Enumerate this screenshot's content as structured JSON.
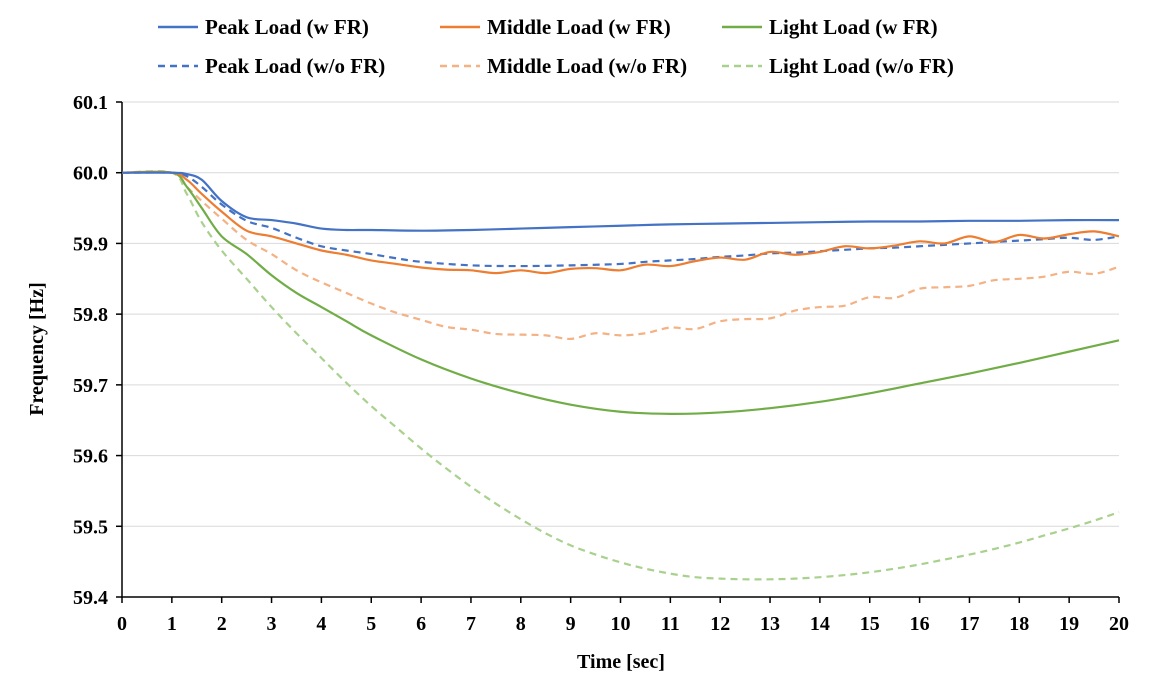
{
  "chart_data": {
    "type": "line",
    "xlabel": "Time  [sec]",
    "ylabel": "Frequency  [Hz]",
    "xlim": [
      0,
      20
    ],
    "ylim": [
      59.4,
      60.1
    ],
    "x_ticks": [
      "0",
      "1",
      "2",
      "3",
      "4",
      "5",
      "6",
      "7",
      "8",
      "9",
      "10",
      "11",
      "12",
      "13",
      "14",
      "15",
      "16",
      "17",
      "18",
      "19",
      "20"
    ],
    "y_ticks": [
      "59.4",
      "59.5",
      "59.6",
      "59.7",
      "59.8",
      "59.9",
      "60.0",
      "60.1"
    ],
    "grid": "horizontal",
    "legend_position": "top",
    "series": [
      {
        "name": "Peak Load (w FR)",
        "color": "#4472C4",
        "dash": "solid",
        "x": [
          0,
          1,
          1.3,
          1.6,
          2,
          2.5,
          3,
          3.5,
          4,
          4.5,
          5,
          6,
          7,
          8,
          9,
          10,
          11,
          12,
          13,
          14,
          15,
          16,
          17,
          18,
          19,
          20
        ],
        "y": [
          60.0,
          60.0,
          59.998,
          59.99,
          59.96,
          59.937,
          59.933,
          59.928,
          59.921,
          59.919,
          59.919,
          59.918,
          59.919,
          59.921,
          59.923,
          59.925,
          59.927,
          59.928,
          59.929,
          59.93,
          59.931,
          59.931,
          59.932,
          59.932,
          59.933,
          59.933
        ]
      },
      {
        "name": "Middle Load (w FR)",
        "color": "#ED7D31",
        "dash": "solid",
        "x": [
          0,
          1,
          1.3,
          1.6,
          2,
          2.5,
          3,
          3.5,
          4,
          4.5,
          5,
          5.5,
          6,
          6.5,
          7,
          7.5,
          8,
          8.5,
          9,
          9.5,
          10,
          10.5,
          11,
          11.5,
          12,
          12.5,
          13,
          13.5,
          14,
          14.5,
          15,
          15.5,
          16,
          16.5,
          17,
          17.5,
          18,
          18.5,
          19,
          19.5,
          20
        ],
        "y": [
          60.0,
          60.0,
          59.99,
          59.97,
          59.945,
          59.918,
          59.91,
          59.9,
          59.89,
          59.884,
          59.876,
          59.871,
          59.866,
          59.863,
          59.862,
          59.858,
          59.862,
          59.858,
          59.864,
          59.865,
          59.862,
          59.87,
          59.868,
          59.875,
          59.88,
          59.877,
          59.888,
          59.884,
          59.888,
          59.896,
          59.893,
          59.897,
          59.903,
          59.9,
          59.91,
          59.902,
          59.912,
          59.907,
          59.913,
          59.917,
          59.91
        ]
      },
      {
        "name": "Light Load (w FR)",
        "color": "#70AD47",
        "dash": "solid",
        "x": [
          0,
          1,
          1.3,
          1.6,
          2,
          2.5,
          3,
          3.5,
          4,
          4.5,
          5,
          6,
          7,
          8,
          9,
          10,
          11,
          12,
          13,
          14,
          15,
          16,
          17,
          18,
          19,
          20
        ],
        "y": [
          60.0,
          60.0,
          59.98,
          59.95,
          59.91,
          59.885,
          59.855,
          59.83,
          59.81,
          59.79,
          59.77,
          59.736,
          59.709,
          59.688,
          59.672,
          59.662,
          59.659,
          59.661,
          59.667,
          59.676,
          59.688,
          59.702,
          59.716,
          59.731,
          59.747,
          59.763
        ]
      },
      {
        "name": "Peak Load (w/o FR)",
        "color": "#4472C4",
        "dash": "dashed",
        "x": [
          0,
          1,
          1.3,
          1.6,
          2,
          2.5,
          3,
          3.5,
          4,
          4.5,
          5,
          5.5,
          6,
          7,
          8,
          9,
          10,
          10.5,
          11,
          11.5,
          12,
          12.5,
          13,
          13.5,
          14,
          14.5,
          15,
          15.5,
          16,
          16.5,
          17,
          17.5,
          18,
          18.5,
          19,
          19.5,
          20
        ],
        "y": [
          60.0,
          60.0,
          59.995,
          59.98,
          59.955,
          59.932,
          59.922,
          59.908,
          59.896,
          59.89,
          59.885,
          59.879,
          59.874,
          59.869,
          59.868,
          59.869,
          59.871,
          59.874,
          59.876,
          59.878,
          59.881,
          59.883,
          59.886,
          59.887,
          59.889,
          59.891,
          59.893,
          59.894,
          59.896,
          59.898,
          59.9,
          59.902,
          59.904,
          59.906,
          59.908,
          59.905,
          59.91
        ]
      },
      {
        "name": "Middle Load (w/o FR)",
        "color": "#F4B183",
        "dash": "dashed",
        "x": [
          0,
          1,
          1.3,
          1.6,
          2,
          2.5,
          3,
          3.5,
          4,
          4.5,
          5,
          5.5,
          6,
          6.5,
          7,
          7.5,
          8,
          8.5,
          9,
          9.5,
          10,
          10.5,
          11,
          11.5,
          12,
          12.5,
          13,
          13.5,
          14,
          14.5,
          15,
          15.5,
          16,
          16.5,
          17,
          17.5,
          18,
          18.5,
          19,
          19.5,
          20
        ],
        "y": [
          60.0,
          60.0,
          59.98,
          59.96,
          59.935,
          59.905,
          59.885,
          59.862,
          59.845,
          59.83,
          59.815,
          59.802,
          59.792,
          59.782,
          59.778,
          59.772,
          59.771,
          59.77,
          59.765,
          59.773,
          59.77,
          59.773,
          59.781,
          59.779,
          59.79,
          59.793,
          59.794,
          59.805,
          59.81,
          59.812,
          59.824,
          59.823,
          59.836,
          59.838,
          59.84,
          59.848,
          59.85,
          59.853,
          59.86,
          59.857,
          59.867
        ]
      },
      {
        "name": "Light Load (w/o FR)",
        "color": "#A9D18E",
        "dash": "dashed",
        "x": [
          0,
          1,
          1.3,
          1.6,
          2,
          2.5,
          3,
          3.5,
          4,
          4.5,
          5,
          5.5,
          6,
          6.5,
          7,
          7.5,
          8,
          8.5,
          9,
          9.5,
          10,
          10.5,
          11,
          11.5,
          12,
          12.5,
          13,
          13.5,
          14,
          14.5,
          15,
          15.5,
          16,
          16.5,
          17,
          17.5,
          18,
          18.5,
          19,
          19.5,
          20
        ],
        "y": [
          60.0,
          60.0,
          59.97,
          59.93,
          59.89,
          59.85,
          59.81,
          59.773,
          59.738,
          59.703,
          59.67,
          59.64,
          59.61,
          59.582,
          59.556,
          59.532,
          59.51,
          59.49,
          59.473,
          59.46,
          59.449,
          59.44,
          59.433,
          59.428,
          59.426,
          59.425,
          59.425,
          59.426,
          59.428,
          59.431,
          59.435,
          59.44,
          59.446,
          59.453,
          59.46,
          59.468,
          59.477,
          59.487,
          59.497,
          59.508,
          59.52
        ]
      }
    ]
  }
}
